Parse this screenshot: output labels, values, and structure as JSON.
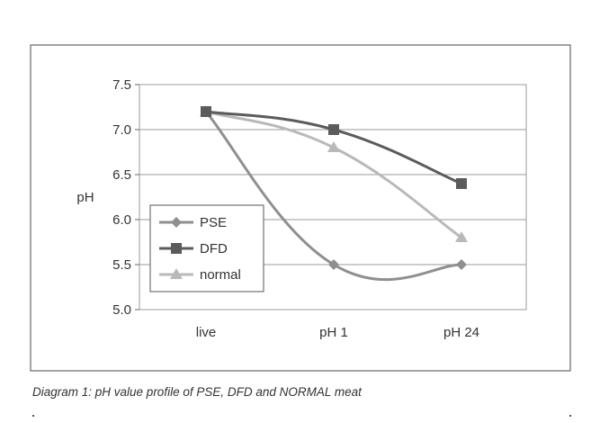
{
  "caption": "Diagram 1: pH value profile of PSE, DFD and NORMAL meat",
  "chart_data": {
    "type": "line",
    "categories": [
      "live",
      "pH  1",
      "pH  24"
    ],
    "ylabel": "pH",
    "ylim": [
      5.0,
      7.5
    ],
    "yticks": [
      5.0,
      5.5,
      6.0,
      6.5,
      7.0,
      7.5
    ],
    "ytick_labels": [
      "5.0",
      "5.5",
      "6.0",
      "6.5",
      "7.0",
      "7.5"
    ],
    "grid": true,
    "legend_position": "bottom-left",
    "series": [
      {
        "name": "PSE",
        "values": [
          7.2,
          5.5,
          5.5
        ],
        "marker": "diamond",
        "color": "#8f8f8f"
      },
      {
        "name": "DFD",
        "values": [
          7.2,
          7.0,
          6.4
        ],
        "marker": "square",
        "color": "#5b5b5b"
      },
      {
        "name": "normal",
        "values": [
          7.2,
          6.8,
          5.8
        ],
        "marker": "triangle",
        "color": "#b9b9b9"
      }
    ]
  }
}
